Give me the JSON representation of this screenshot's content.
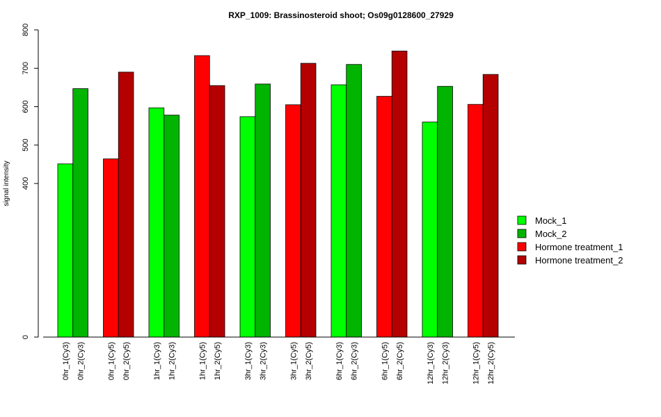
{
  "chart_data": {
    "type": "bar",
    "title": "RXP_1009: Brassinosteroid shoot; Os09g0128600_27929",
    "xlabel": "",
    "ylabel": "signal intensity",
    "ylim": [
      0,
      800
    ],
    "y_ticks": [
      "0",
      "400",
      "500",
      "600",
      "700",
      "800"
    ],
    "grid": false,
    "legend_position": "right",
    "series": [
      {
        "name": "Mock_1",
        "color": "#00FF00"
      },
      {
        "name": "Mock_2",
        "color": "#00B400"
      },
      {
        "name": "Hormone treatment_1",
        "color": "#FF0000"
      },
      {
        "name": "Hormone treatment_2",
        "color": "#B40000"
      }
    ],
    "categories": [
      "0hr_1(Cy3)",
      "0hr_2(Cy3)",
      "0hr_1(Cy5)",
      "0hr_2(Cy5)",
      "1hr_1(Cy3)",
      "1hr_2(Cy3)",
      "1hr_1(Cy5)",
      "1hr_2(Cy5)",
      "3hr_1(Cy3)",
      "3hr_2(Cy3)",
      "3hr_1(Cy5)",
      "3hr_2(Cy5)",
      "6hr_1(Cy3)",
      "6hr_2(Cy3)",
      "6hr_1(Cy5)",
      "6hr_2(Cy5)",
      "12hr_1(Cy3)",
      "12hr_2(Cy3)",
      "12hr_1(Cy5)",
      "12hr_2(Cy5)"
    ],
    "values": [
      451,
      647,
      464,
      690,
      597,
      578,
      733,
      655,
      574,
      659,
      605,
      713,
      657,
      710,
      627,
      745,
      560,
      653,
      606,
      684
    ],
    "bar_series": [
      0,
      1,
      2,
      3,
      0,
      1,
      2,
      3,
      0,
      1,
      2,
      3,
      0,
      1,
      2,
      3,
      0,
      1,
      2,
      3
    ]
  }
}
